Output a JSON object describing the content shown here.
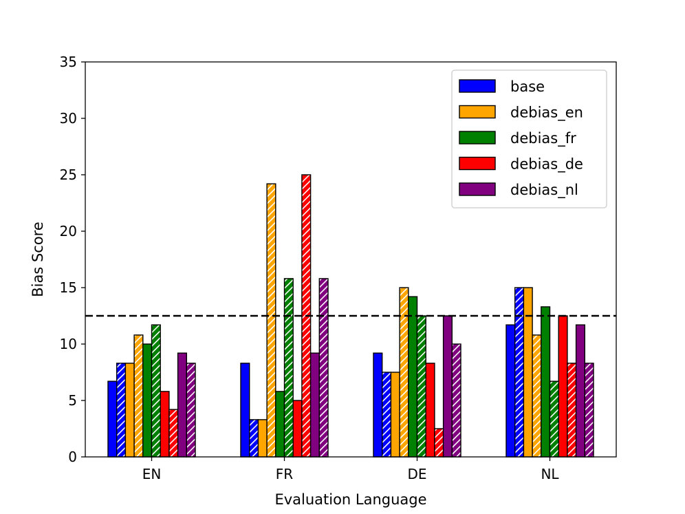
{
  "chart_data": {
    "type": "bar",
    "title": "",
    "xlabel": "Evaluation Language",
    "ylabel": "Bias Score",
    "categories": [
      "EN",
      "FR",
      "DE",
      "NL"
    ],
    "ylim": [
      0,
      35
    ],
    "yticks": [
      "0",
      "5",
      "10",
      "15",
      "20",
      "25",
      "30",
      "35"
    ],
    "reference_line": {
      "value": 12.5,
      "style": "dashed",
      "color": "#000000"
    },
    "legend_position": "top-right",
    "series": [
      {
        "name": "base",
        "color": "#0000ff",
        "solid": [
          6.7,
          8.3,
          9.2,
          11.7
        ],
        "hatched": [
          8.3,
          3.3,
          7.5,
          15.0
        ]
      },
      {
        "name": "debias_en",
        "color": "#ffa500",
        "solid": [
          8.3,
          3.3,
          7.5,
          15.0
        ],
        "hatched": [
          10.8,
          24.2,
          15.0,
          10.8
        ]
      },
      {
        "name": "debias_fr",
        "color": "#008000",
        "solid": [
          10.0,
          5.8,
          14.2,
          13.3
        ],
        "hatched": [
          11.7,
          15.8,
          12.5,
          6.7
        ]
      },
      {
        "name": "debias_de",
        "color": "#ff0000",
        "solid": [
          5.8,
          5.0,
          8.3,
          12.5
        ],
        "hatched": [
          4.2,
          25.0,
          2.5,
          8.3
        ]
      },
      {
        "name": "debias_nl",
        "color": "#800080",
        "solid": [
          9.2,
          9.2,
          12.5,
          11.7
        ],
        "hatched": [
          8.3,
          15.8,
          10.0,
          8.3
        ]
      }
    ]
  }
}
